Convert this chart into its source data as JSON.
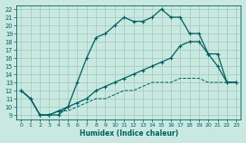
{
  "xlabel": "Humidex (Indice chaleur)",
  "bg_color": "#c8e8e0",
  "line_color": "#006060",
  "grid_color": "#a0c8c0",
  "xlim": [
    -0.5,
    23.5
  ],
  "ylim": [
    8.5,
    22.5
  ],
  "xticks": [
    0,
    1,
    2,
    3,
    4,
    5,
    6,
    7,
    8,
    9,
    10,
    11,
    12,
    13,
    14,
    15,
    16,
    17,
    18,
    19,
    20,
    21,
    22,
    23
  ],
  "yticks": [
    9,
    10,
    11,
    12,
    13,
    14,
    15,
    16,
    17,
    18,
    19,
    20,
    21,
    22
  ],
  "series_peak_x": [
    0,
    1,
    2,
    3,
    4,
    5,
    6,
    7,
    8,
    9,
    10,
    11,
    12,
    13,
    14,
    15,
    16,
    17,
    18,
    19,
    20,
    21,
    22,
    23
  ],
  "series_peak_y": [
    12,
    11,
    9,
    9,
    9,
    10,
    13,
    16,
    18.5,
    19,
    20,
    21,
    20.5,
    20.5,
    21,
    22,
    21,
    21,
    19,
    19,
    16.5,
    15,
    13,
    13
  ],
  "series_mid_x": [
    0,
    1,
    2,
    3,
    4,
    5,
    6,
    7,
    8,
    9,
    10,
    11,
    12,
    13,
    14,
    15,
    16,
    17,
    18,
    19,
    20,
    21,
    22,
    23
  ],
  "series_mid_y": [
    12,
    11,
    9,
    9,
    9.5,
    10,
    10.5,
    11,
    12,
    12.5,
    13,
    13.5,
    14,
    14.5,
    15,
    15.5,
    16,
    17.5,
    18,
    18,
    16.5,
    16.5,
    13,
    13
  ],
  "series_flat_x": [
    0,
    1,
    2,
    3,
    4,
    5,
    6,
    7,
    8,
    9,
    10,
    11,
    12,
    13,
    14,
    15,
    16,
    17,
    18,
    19,
    20,
    21,
    22,
    23
  ],
  "series_flat_y": [
    12,
    11,
    9,
    9,
    9.5,
    9.5,
    10,
    10.5,
    11,
    11,
    11.5,
    12,
    12,
    12.5,
    13,
    13,
    13,
    13.5,
    13.5,
    13.5,
    13,
    13,
    13,
    13
  ]
}
